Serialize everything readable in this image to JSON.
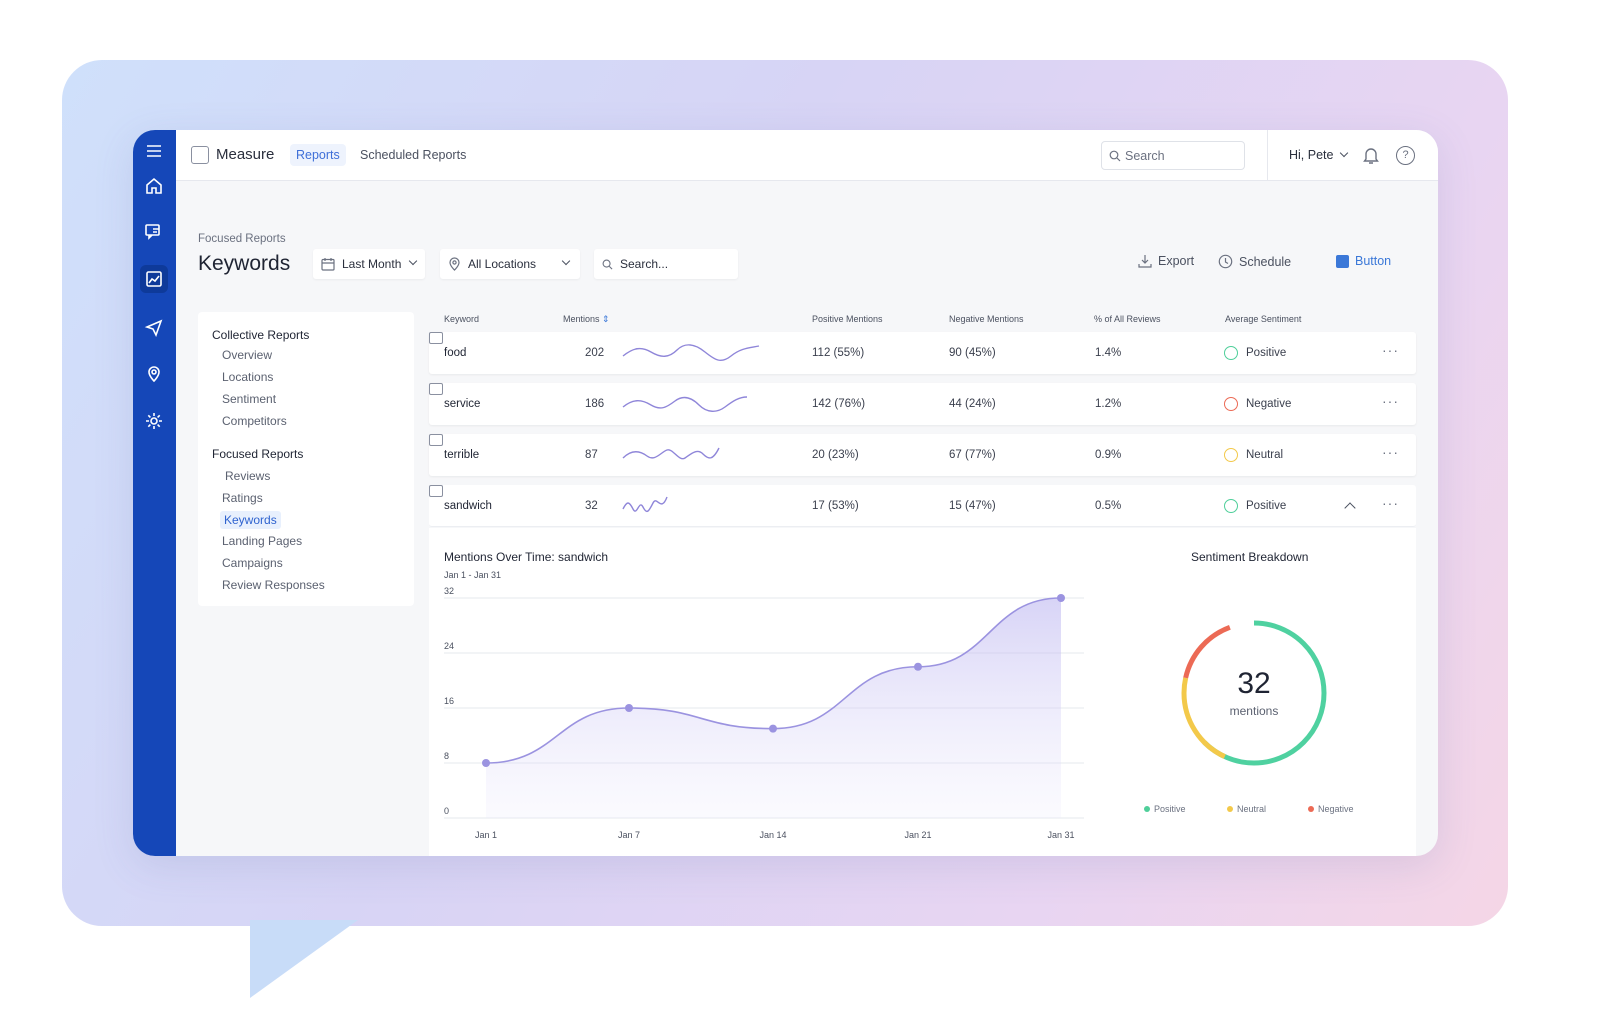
{
  "topbar": {
    "app_name": "Measure",
    "tabs": [
      "Reports",
      "Scheduled Reports"
    ],
    "search_placeholder": "Search",
    "user_greeting": "Hi, Pete"
  },
  "page": {
    "breadcrumb": "Focused Reports",
    "title": "Keywords",
    "filters": {
      "date": "Last Month",
      "location": "All Locations",
      "search_placeholder": "Search..."
    },
    "actions": {
      "export": "Export",
      "schedule": "Schedule",
      "button": "Button"
    }
  },
  "sidebar": {
    "groups": [
      {
        "heading": "Collective Reports",
        "items": [
          "Overview",
          "Locations",
          "Sentiment",
          "Competitors"
        ]
      },
      {
        "heading": "Focused Reports",
        "items": [
          "Reviews",
          "Ratings",
          "Keywords",
          "Landing Pages",
          "Campaigns",
          "Review Responses"
        ]
      }
    ],
    "active_item": "Keywords"
  },
  "table": {
    "headers": [
      "Keyword",
      "Mentions",
      "Positive Mentions",
      "Negative Mentions",
      "% of All Reviews",
      "Average Sentiment"
    ],
    "rows": [
      {
        "keyword": "food",
        "mentions": "202",
        "positive": "112 (55%)",
        "negative": "90 (45%)",
        "pct": "1.4%",
        "sentiment": "Positive",
        "sentiment_color": "#4fcf9a"
      },
      {
        "keyword": "service",
        "mentions": "186",
        "positive": "142 (76%)",
        "negative": "44 (24%)",
        "pct": "1.2%",
        "sentiment": "Negative",
        "sentiment_color": "#ec6a55"
      },
      {
        "keyword": "terrible",
        "mentions": "87",
        "positive": "20 (23%)",
        "negative": "67 (77%)",
        "pct": "0.9%",
        "sentiment": "Neutral",
        "sentiment_color": "#f3c94a"
      },
      {
        "keyword": "sandwich",
        "mentions": "32",
        "positive": "17 (53%)",
        "negative": "15 (47%)",
        "pct": "0.5%",
        "sentiment": "Positive",
        "sentiment_color": "#4fcf9a"
      }
    ],
    "more_label": "···"
  },
  "panel": {
    "title": "Mentions Over Time:  sandwich",
    "subtitle": "Jan 1 - Jan 31",
    "donut_title": "Sentiment Breakdown",
    "donut_value": "32",
    "donut_label": "mentions",
    "legend": [
      {
        "name": "Positive",
        "color": "#4fcf9a"
      },
      {
        "name": "Neutral",
        "color": "#f3c94a"
      },
      {
        "name": "Negative",
        "color": "#ec6a55"
      }
    ]
  },
  "chart_data": {
    "type": "area",
    "title": "Mentions Over Time:  sandwich",
    "x": [
      "Jan 1",
      "Jan 7",
      "Jan 14",
      "Jan 21",
      "Jan 31"
    ],
    "y": [
      8,
      16,
      13,
      22,
      32
    ],
    "yticks": [
      0,
      8,
      16,
      24,
      32
    ],
    "ylim": [
      0,
      32
    ],
    "grid": true,
    "color": "#9b93e0"
  }
}
